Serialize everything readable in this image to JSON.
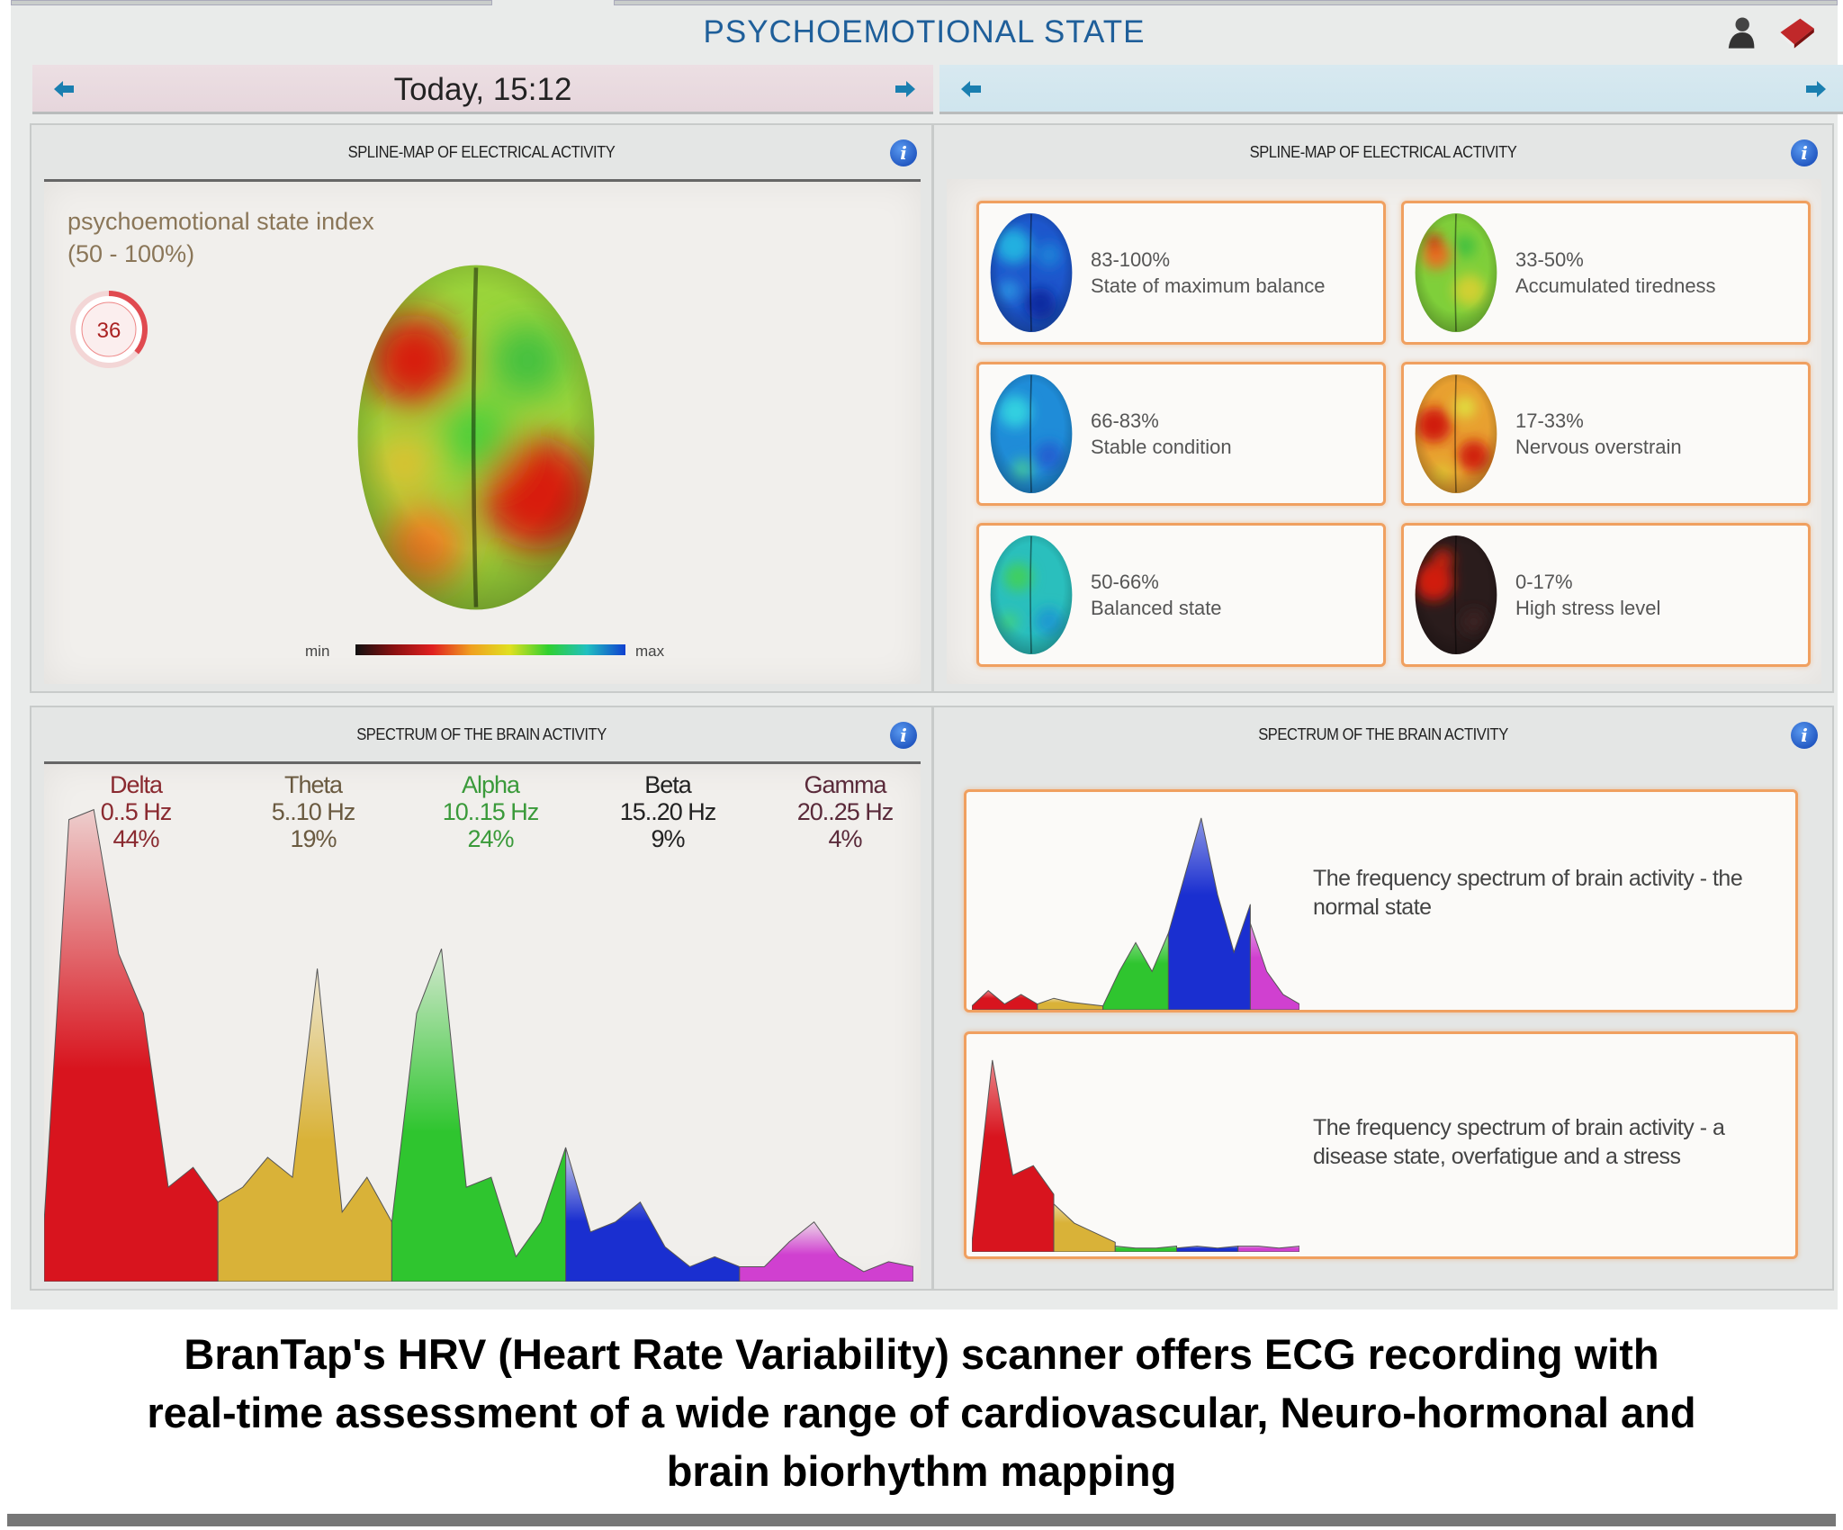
{
  "header": {
    "title": "PSYCHOEMOTIONAL STATE",
    "left_date": "Today, 15:12"
  },
  "icons": {
    "top_right": [
      "user-icon",
      "book-icon"
    ],
    "nav": [
      "arrow-left-icon",
      "arrow-right-icon"
    ]
  },
  "spline_left": {
    "title": "SPLINE-MAP OF ELECTRICAL ACTIVITY",
    "index_label": "psychoemotional state index",
    "index_range": "(50 - 100%)",
    "index_value": "36",
    "index_fraction": 0.36,
    "scale_min": "min",
    "scale_max": "max"
  },
  "spline_right": {
    "title": "SPLINE-MAP OF ELECTRICAL ACTIVITY",
    "legend": [
      {
        "range": "83-100%",
        "label": "State of maximum balance"
      },
      {
        "range": "33-50%",
        "label": "Accumulated tiredness"
      },
      {
        "range": "66-83%",
        "label": "Stable condition"
      },
      {
        "range": "17-33%",
        "label": "Nervous overstrain"
      },
      {
        "range": "50-66%",
        "label": "Balanced state"
      },
      {
        "range": "0-17%",
        "label": "High stress level"
      }
    ]
  },
  "spectrum_left": {
    "title": "SPECTRUM OF THE BRAIN ACTIVITY"
  },
  "spectrum_right": {
    "title": "SPECTRUM OF THE BRAIN ACTIVITY",
    "normal_text": "The frequency spectrum of brain activity - the normal state",
    "stress_text": "The frequency spectrum of brain activity - a disease state, overfatigue and a stress"
  },
  "colors": {
    "title": "#1f5f9a",
    "card_border": "#f0a060",
    "delta": "#d8141e",
    "theta": "#d9b238",
    "alpha": "#2fc52f",
    "beta": "#1a2fd0",
    "gamma": "#d040d0"
  },
  "chart_data": [
    {
      "type": "area",
      "title": "Spectrum of the brain activity",
      "ylim": [
        0,
        100
      ],
      "bands": [
        {
          "name": "Delta",
          "range": "0..5 Hz",
          "percent": "44%",
          "values": [
            12,
            93,
            95,
            66,
            54,
            19,
            23,
            16
          ]
        },
        {
          "name": "Theta",
          "range": "5..10 Hz",
          "percent": "19%",
          "values": [
            16,
            19,
            25,
            21,
            63,
            14,
            21,
            12
          ]
        },
        {
          "name": "Alpha",
          "range": "10..15 Hz",
          "percent": "24%",
          "values": [
            12,
            54,
            67,
            19,
            21,
            5,
            12,
            27
          ]
        },
        {
          "name": "Beta",
          "range": "15..20 Hz",
          "percent": "9%",
          "values": [
            27,
            10,
            12,
            16,
            7,
            3,
            5,
            3
          ]
        },
        {
          "name": "Gamma",
          "range": "20..25 Hz",
          "percent": "4%",
          "values": [
            3,
            3,
            8,
            12,
            5,
            2,
            4,
            3
          ]
        }
      ]
    },
    {
      "type": "area",
      "title": "normal state",
      "ylim": [
        0,
        100
      ],
      "bands": [
        {
          "name": "Delta",
          "values": [
            2,
            10,
            3,
            8,
            3
          ]
        },
        {
          "name": "Theta",
          "values": [
            3,
            6,
            4,
            3,
            2
          ]
        },
        {
          "name": "Alpha",
          "values": [
            2,
            20,
            35,
            20,
            40
          ]
        },
        {
          "name": "Beta",
          "values": [
            40,
            70,
            100,
            60,
            30,
            55
          ]
        },
        {
          "name": "Gamma",
          "values": [
            45,
            20,
            8,
            3
          ]
        }
      ]
    },
    {
      "type": "area",
      "title": "stress state",
      "ylim": [
        0,
        100
      ],
      "bands": [
        {
          "name": "Delta",
          "values": [
            5,
            100,
            40,
            45,
            30
          ]
        },
        {
          "name": "Theta",
          "values": [
            25,
            15,
            10,
            5
          ]
        },
        {
          "name": "Alpha",
          "values": [
            3,
            2,
            2,
            3
          ]
        },
        {
          "name": "Beta",
          "values": [
            2,
            3,
            2,
            3
          ]
        },
        {
          "name": "Gamma",
          "values": [
            3,
            3,
            2,
            3
          ]
        }
      ]
    }
  ],
  "caption": {
    "line1": "BranTap's HRV (Heart Rate Variability) scanner offers ECG recording with",
    "line2": "real-time assessment of a wide range of cardiovascular, Neuro-hormonal and",
    "line3": "brain biorhythm mapping"
  }
}
